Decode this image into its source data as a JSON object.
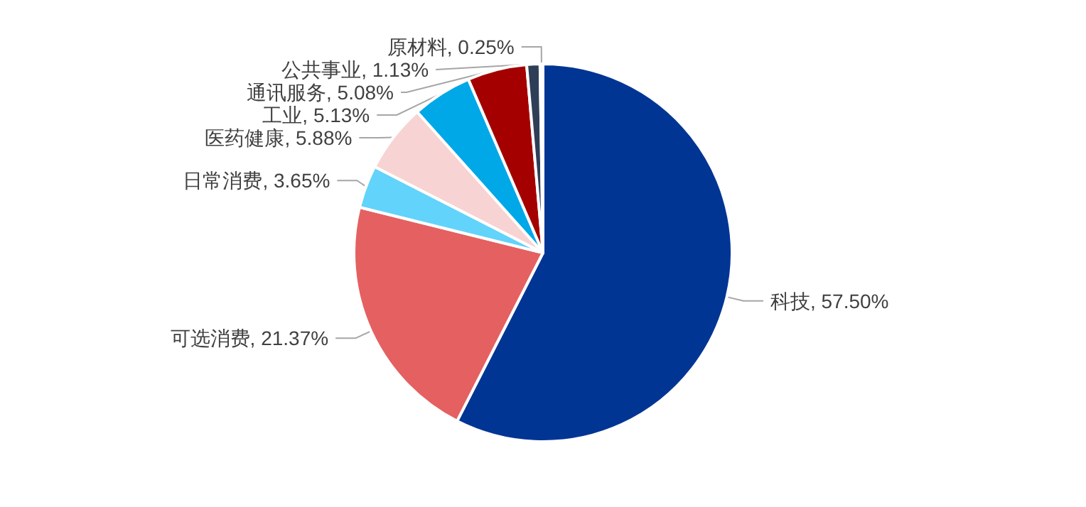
{
  "chart_data": {
    "type": "pie",
    "categories": [
      "科技",
      "可选消费",
      "日常消费",
      "医药健康",
      "工业",
      "通讯服务",
      "公共事业",
      "原材料"
    ],
    "values": [
      57.5,
      21.37,
      3.65,
      5.88,
      5.13,
      5.08,
      1.13,
      0.25
    ],
    "colors": [
      "#003594",
      "#e56060",
      "#62d3fb",
      "#f8d3d3",
      "#00a8e8",
      "#a50000",
      "#2f3e57",
      "#9dc3e6"
    ],
    "value_labels": [
      "57.50%",
      "21.37%",
      "3.65%",
      "5.88%",
      "5.13%",
      "5.08%",
      "1.13%",
      "0.25%"
    ],
    "legend": false
  }
}
